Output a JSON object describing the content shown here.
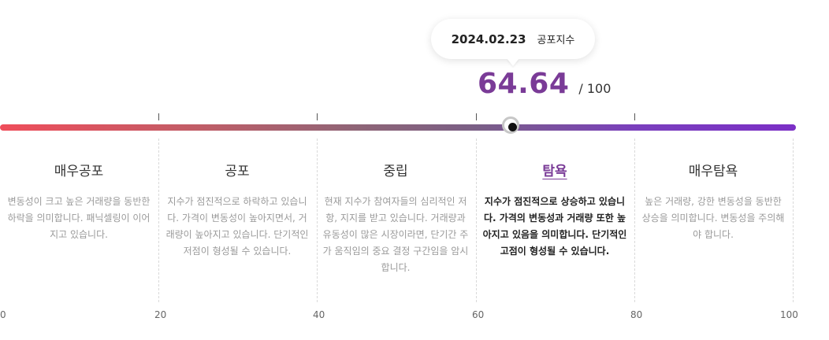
{
  "tooltip": {
    "date": "2024.02.23",
    "label": "공포지수"
  },
  "score": {
    "value": "64.64",
    "max": "/ 100",
    "accent": "#7a3b97"
  },
  "scale": {
    "axis_labels": [
      "0",
      "20",
      "40",
      "60",
      "80",
      "100"
    ],
    "current_value": 64.64,
    "range": [
      0,
      100
    ]
  },
  "zones": [
    {
      "title": "매우공포",
      "desc": "변동성이 크고 높은 거래량을 동반한 하락을 의미합니다. 패닉셀링이 이어지고 있습니다."
    },
    {
      "title": "공포",
      "desc": "지수가 점진적으로 하락하고 있습니다. 가격이 변동성이 높아지면서, 거래량이 높아지고 있습니다. 단기적인 저점이 형성될 수 있습니다."
    },
    {
      "title": "중립",
      "desc": "현재 지수가 참여자들의 심리적인 저항, 지지를 받고 있습니다. 거래량과 유동성이 많은 시장이라면, 단기간 주가 움직임의 중요 결정 구간임을 암시합니다."
    },
    {
      "title": "탐욕",
      "desc": "지수가 점진적으로 상승하고 있습니다. 가격의 변동성과 거래량 또한 높아지고 있음을 의미합니다. 단기적인 고점이 형성될 수 있습니다."
    },
    {
      "title": "매우탐욕",
      "desc": "높은 거래량, 강한 변동성을 동반한 상승을 의미합니다. 변동성을 주의해야 합니다."
    }
  ],
  "active_zone": "탐욕"
}
